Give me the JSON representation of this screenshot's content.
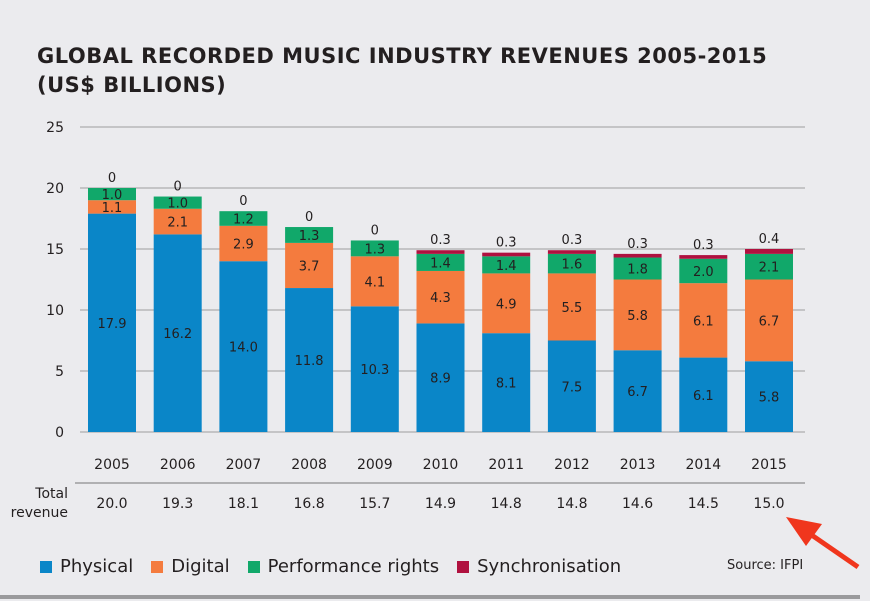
{
  "chart_data": {
    "type": "bar",
    "stacked": true,
    "title_line1": "GLOBAL RECORDED MUSIC INDUSTRY REVENUES 2005-2015",
    "title_line2": "(US$ BILLIONS)",
    "categories": [
      "2005",
      "2006",
      "2007",
      "2008",
      "2009",
      "2010",
      "2011",
      "2012",
      "2013",
      "2014",
      "2015"
    ],
    "ylim": [
      0,
      25
    ],
    "yticks": [
      0,
      5,
      10,
      15,
      20,
      25
    ],
    "grid": true,
    "series": [
      {
        "name": "Physical",
        "color": "#0a86c8",
        "values": [
          17.9,
          16.2,
          14.0,
          11.8,
          10.3,
          8.9,
          8.1,
          7.5,
          6.7,
          6.1,
          5.8
        ],
        "labels": [
          "17.9",
          "16.2",
          "14.0",
          "11.8",
          "10.3",
          "8.9",
          "8.1",
          "7.5",
          "6.7",
          "6.1",
          "5.8"
        ]
      },
      {
        "name": "Digital",
        "color": "#f47b3e",
        "values": [
          1.1,
          2.1,
          2.9,
          3.7,
          4.1,
          4.3,
          4.9,
          5.5,
          5.8,
          6.1,
          6.7
        ],
        "labels": [
          "1.1",
          "2.1",
          "2.9",
          "3.7",
          "4.1",
          "4.3",
          "4.9",
          "5.5",
          "5.8",
          "6.1",
          "6.7"
        ]
      },
      {
        "name": "Performance rights",
        "color": "#11a86a",
        "values": [
          1.0,
          1.0,
          1.2,
          1.3,
          1.3,
          1.4,
          1.4,
          1.6,
          1.8,
          2.0,
          2.1
        ],
        "labels": [
          "1.0",
          "1.0",
          "1.2",
          "1.3",
          "1.3",
          "1.4",
          "1.4",
          "1.6",
          "1.8",
          "2.0",
          "2.1"
        ]
      },
      {
        "name": "Synchronisation",
        "color": "#b0113f",
        "values": [
          0,
          0,
          0,
          0,
          0,
          0.3,
          0.3,
          0.3,
          0.3,
          0.3,
          0.4
        ],
        "labels": [
          "0",
          "0",
          "0",
          "0",
          "0",
          "0.3",
          "0.3",
          "0.3",
          "0.3",
          "0.3",
          "0.4"
        ]
      }
    ],
    "total_label": "Total revenue",
    "totals": [
      "20.0",
      "19.3",
      "18.1",
      "16.8",
      "15.7",
      "14.9",
      "14.8",
      "14.8",
      "14.6",
      "14.5",
      "15.0"
    ],
    "source": "Source: IFPI",
    "annotation": "red arrow pointing to 2015 total"
  }
}
